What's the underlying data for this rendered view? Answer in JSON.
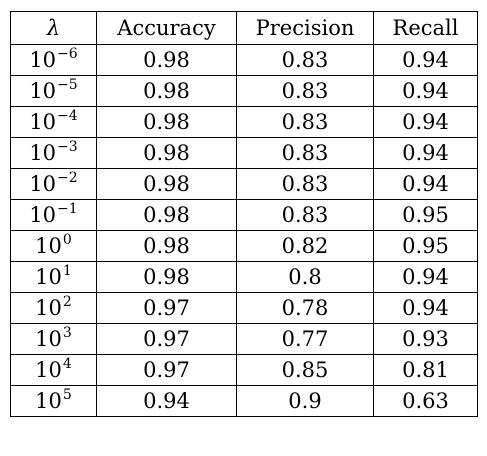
{
  "table": {
    "headers": {
      "lambda": "λ",
      "accuracy": "Accuracy",
      "precision": "Precision",
      "recall": "Recall"
    },
    "rows": [
      {
        "base": "10",
        "exp": "−6",
        "accuracy": "0.98",
        "precision": "0.83",
        "recall": "0.94"
      },
      {
        "base": "10",
        "exp": "−5",
        "accuracy": "0.98",
        "precision": "0.83",
        "recall": "0.94"
      },
      {
        "base": "10",
        "exp": "−4",
        "accuracy": "0.98",
        "precision": "0.83",
        "recall": "0.94"
      },
      {
        "base": "10",
        "exp": "−3",
        "accuracy": "0.98",
        "precision": "0.83",
        "recall": "0.94"
      },
      {
        "base": "10",
        "exp": "−2",
        "accuracy": "0.98",
        "precision": "0.83",
        "recall": "0.94"
      },
      {
        "base": "10",
        "exp": "−1",
        "accuracy": "0.98",
        "precision": "0.83",
        "recall": "0.95"
      },
      {
        "base": "10",
        "exp": "0",
        "accuracy": "0.98",
        "precision": "0.82",
        "recall": "0.95"
      },
      {
        "base": "10",
        "exp": "1",
        "accuracy": "0.98",
        "precision": "0.8",
        "recall": "0.94"
      },
      {
        "base": "10",
        "exp": "2",
        "accuracy": "0.97",
        "precision": "0.78",
        "recall": "0.94"
      },
      {
        "base": "10",
        "exp": "3",
        "accuracy": "0.97",
        "precision": "0.77",
        "recall": "0.93"
      },
      {
        "base": "10",
        "exp": "4",
        "accuracy": "0.97",
        "precision": "0.85",
        "recall": "0.81"
      },
      {
        "base": "10",
        "exp": "5",
        "accuracy": "0.94",
        "precision": "0.9",
        "recall": "0.63"
      }
    ]
  }
}
